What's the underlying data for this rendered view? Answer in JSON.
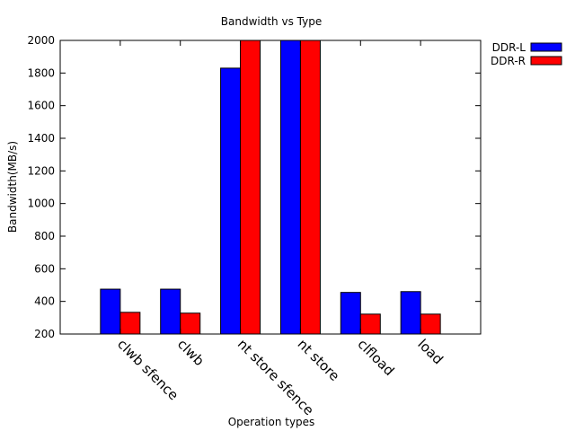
{
  "chart_data": {
    "type": "bar",
    "title": "Bandwidth vs Type",
    "xlabel": "Operation types",
    "ylabel": "Bandwidth(MB/s)",
    "ylim": [
      200,
      2000
    ],
    "yticks": [
      200,
      400,
      600,
      800,
      1000,
      1200,
      1400,
      1600,
      1800,
      2000
    ],
    "categories": [
      "clwb sfence",
      "clwb",
      "nt store sfence",
      "nt store",
      "clfload",
      "load"
    ],
    "series": [
      {
        "name": "DDR-L",
        "color": "#0000ff",
        "values": [
          475,
          475,
          1830,
          2000,
          455,
          460
        ]
      },
      {
        "name": "DDR-R",
        "color": "#ff0000",
        "values": [
          333,
          328,
          2000,
          2000,
          322,
          322
        ]
      }
    ],
    "legend_position": "outside-top-right",
    "grid": false
  }
}
